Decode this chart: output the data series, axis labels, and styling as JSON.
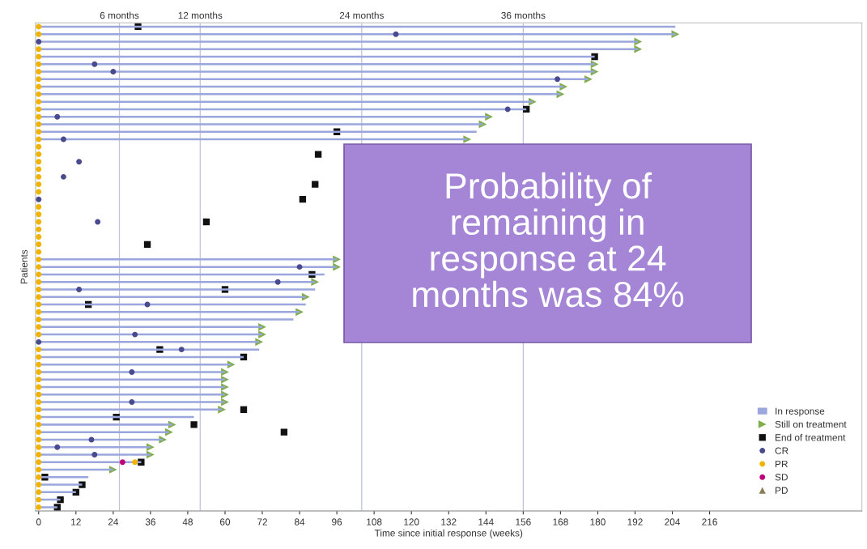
{
  "chart_data": {
    "type": "bar",
    "orientation": "horizontal",
    "xlabel": "Time since initial response (weeks)",
    "ylabel": "Patients",
    "categories": [
      null,
      null,
      null,
      null,
      null,
      null,
      null,
      null,
      null,
      null,
      null,
      null,
      null,
      null,
      null,
      null,
      null,
      null,
      null,
      null,
      null,
      null,
      null,
      null,
      null,
      null,
      null,
      null,
      null,
      null,
      null,
      null,
      null,
      null,
      null,
      null,
      null,
      null,
      null,
      null,
      null,
      null,
      null,
      null,
      null,
      null,
      null,
      null,
      null,
      null,
      null,
      null,
      null,
      null,
      null,
      null,
      null,
      null,
      null,
      null,
      null,
      null,
      null,
      null,
      null
    ],
    "xlim": [
      -1,
      265
    ],
    "xticks": [
      0,
      12,
      24,
      36,
      48,
      60,
      72,
      84,
      96,
      108,
      120,
      132,
      144,
      156,
      168,
      180,
      192,
      204,
      216
    ],
    "x2lim": [
      -0.23,
      61.15
    ],
    "x2ticks": [
      {
        "value": 6,
        "label": "6 months"
      },
      {
        "value": 12,
        "label": "12 months"
      },
      {
        "value": 24,
        "label": "24 months"
      },
      {
        "value": 36,
        "label": "36 months"
      }
    ],
    "grid": "x",
    "legend": "bottom right",
    "series": [
      {
        "name": "In response",
        "color": "#9aa6dc",
        "values": [
          205,
          205,
          193,
          193,
          179,
          179,
          179,
          177,
          169,
          168,
          159,
          157,
          145,
          143,
          141,
          138,
          null,
          null,
          null,
          null,
          null,
          null,
          null,
          null,
          null,
          null,
          null,
          null,
          null,
          null,
          null,
          96,
          96,
          92,
          89,
          89,
          86,
          86,
          84,
          82,
          72,
          72,
          71,
          71,
          66,
          62,
          60,
          60,
          60,
          60,
          60,
          59,
          50,
          43,
          42,
          40,
          36,
          36,
          33,
          24,
          16,
          14,
          12,
          7,
          6
        ]
      },
      {
        "name": "Still on treatment",
        "type": "scatter",
        "marker": "triangle_right",
        "color": "#7fae4a",
        "values": [
          null,
          205,
          193,
          193,
          null,
          179,
          179,
          177,
          169,
          168,
          159,
          null,
          145,
          143,
          null,
          138,
          null,
          null,
          null,
          null,
          null,
          null,
          null,
          null,
          null,
          null,
          null,
          null,
          null,
          null,
          null,
          96,
          96,
          null,
          89,
          null,
          86,
          null,
          84,
          null,
          72,
          72,
          71,
          null,
          null,
          62,
          60,
          60,
          60,
          60,
          60,
          59,
          null,
          43,
          42,
          40,
          36,
          36,
          null,
          24,
          null,
          null,
          null,
          null,
          null
        ]
      },
      {
        "name": "End of treatment",
        "type": "scatter",
        "marker": "square",
        "color": "#111111",
        "values": [
          32,
          null,
          null,
          null,
          179,
          null,
          null,
          null,
          null,
          null,
          null,
          157,
          null,
          null,
          96,
          null,
          null,
          90,
          null,
          null,
          null,
          89,
          null,
          85,
          null,
          null,
          54,
          null,
          null,
          35,
          null,
          null,
          null,
          88,
          null,
          60,
          null,
          16,
          null,
          null,
          null,
          null,
          null,
          39,
          66,
          null,
          null,
          null,
          null,
          null,
          null,
          66,
          25,
          50,
          79,
          null,
          null,
          null,
          33,
          null,
          2,
          14,
          12,
          7,
          6
        ]
      },
      {
        "name": "CR",
        "type": "scatter",
        "marker": "circle",
        "color": "#4a4a8e",
        "values": [
          null,
          115,
          0,
          null,
          null,
          18,
          24,
          167,
          null,
          null,
          null,
          151,
          6,
          null,
          null,
          8,
          null,
          null,
          13,
          null,
          8,
          null,
          null,
          0,
          null,
          null,
          19,
          null,
          null,
          null,
          null,
          null,
          84,
          null,
          77,
          13,
          null,
          35,
          null,
          null,
          null,
          31,
          0,
          46,
          null,
          null,
          30,
          null,
          null,
          null,
          30,
          null,
          null,
          null,
          null,
          17,
          6,
          18,
          null,
          null,
          null,
          null,
          null,
          null,
          null
        ]
      },
      {
        "name": "PR",
        "type": "scatter",
        "marker": "circle",
        "color": "#f0b400",
        "values": [
          0,
          0,
          null,
          0,
          0,
          0,
          0,
          0,
          0,
          0,
          0,
          0,
          0,
          0,
          0,
          0,
          0,
          0,
          0,
          0,
          0,
          0,
          0,
          null,
          0,
          0,
          0,
          0,
          0,
          0,
          0,
          0,
          0,
          0,
          0,
          0,
          0,
          0,
          0,
          0,
          0,
          0,
          null,
          0,
          0,
          0,
          0,
          0,
          0,
          0,
          0,
          0,
          0,
          0,
          0,
          0,
          0,
          0,
          0,
          0,
          0,
          0,
          0,
          0,
          0
        ]
      },
      {
        "name": "SD",
        "type": "scatter",
        "marker": "circle",
        "color": "#c0007a",
        "values": [
          null,
          null,
          null,
          null,
          null,
          null,
          null,
          null,
          null,
          null,
          null,
          null,
          null,
          null,
          null,
          null,
          null,
          null,
          null,
          null,
          null,
          null,
          null,
          null,
          null,
          null,
          null,
          null,
          null,
          null,
          null,
          null,
          null,
          null,
          null,
          null,
          null,
          null,
          null,
          null,
          null,
          null,
          null,
          null,
          null,
          null,
          null,
          null,
          null,
          null,
          null,
          null,
          null,
          null,
          null,
          null,
          null,
          null,
          27,
          null,
          null,
          null,
          null,
          null,
          null
        ]
      },
      {
        "name": "PD",
        "type": "scatter",
        "marker": "triangle",
        "color": "#8b7d5a",
        "values": [
          null,
          null,
          null,
          null,
          null,
          null,
          null,
          null,
          null,
          null,
          null,
          null,
          null,
          null,
          null,
          null,
          null,
          null,
          null,
          null,
          null,
          null,
          null,
          null,
          null,
          null,
          null,
          null,
          null,
          null,
          null,
          null,
          null,
          null,
          null,
          null,
          null,
          null,
          null,
          null,
          null,
          null,
          null,
          null,
          null,
          null,
          null,
          null,
          null,
          null,
          null,
          null,
          null,
          null,
          null,
          null,
          null,
          null,
          null,
          null,
          null,
          null,
          null,
          null,
          null
        ]
      },
      {
        "type": "scatter",
        "marker": "circle",
        "color": "#f0b400",
        "values": [
          null,
          null,
          null,
          null,
          null,
          null,
          null,
          null,
          null,
          null,
          null,
          null,
          null,
          null,
          null,
          null,
          null,
          null,
          null,
          null,
          null,
          null,
          null,
          null,
          null,
          null,
          null,
          null,
          null,
          null,
          null,
          null,
          null,
          null,
          null,
          null,
          null,
          null,
          null,
          null,
          null,
          null,
          null,
          null,
          null,
          null,
          null,
          null,
          null,
          null,
          null,
          null,
          null,
          null,
          null,
          null,
          null,
          null,
          31,
          null,
          null,
          null,
          null,
          null,
          null
        ]
      }
    ],
    "annotations": [
      "Probability of remaining in response at 24 months was 84%"
    ]
  }
}
